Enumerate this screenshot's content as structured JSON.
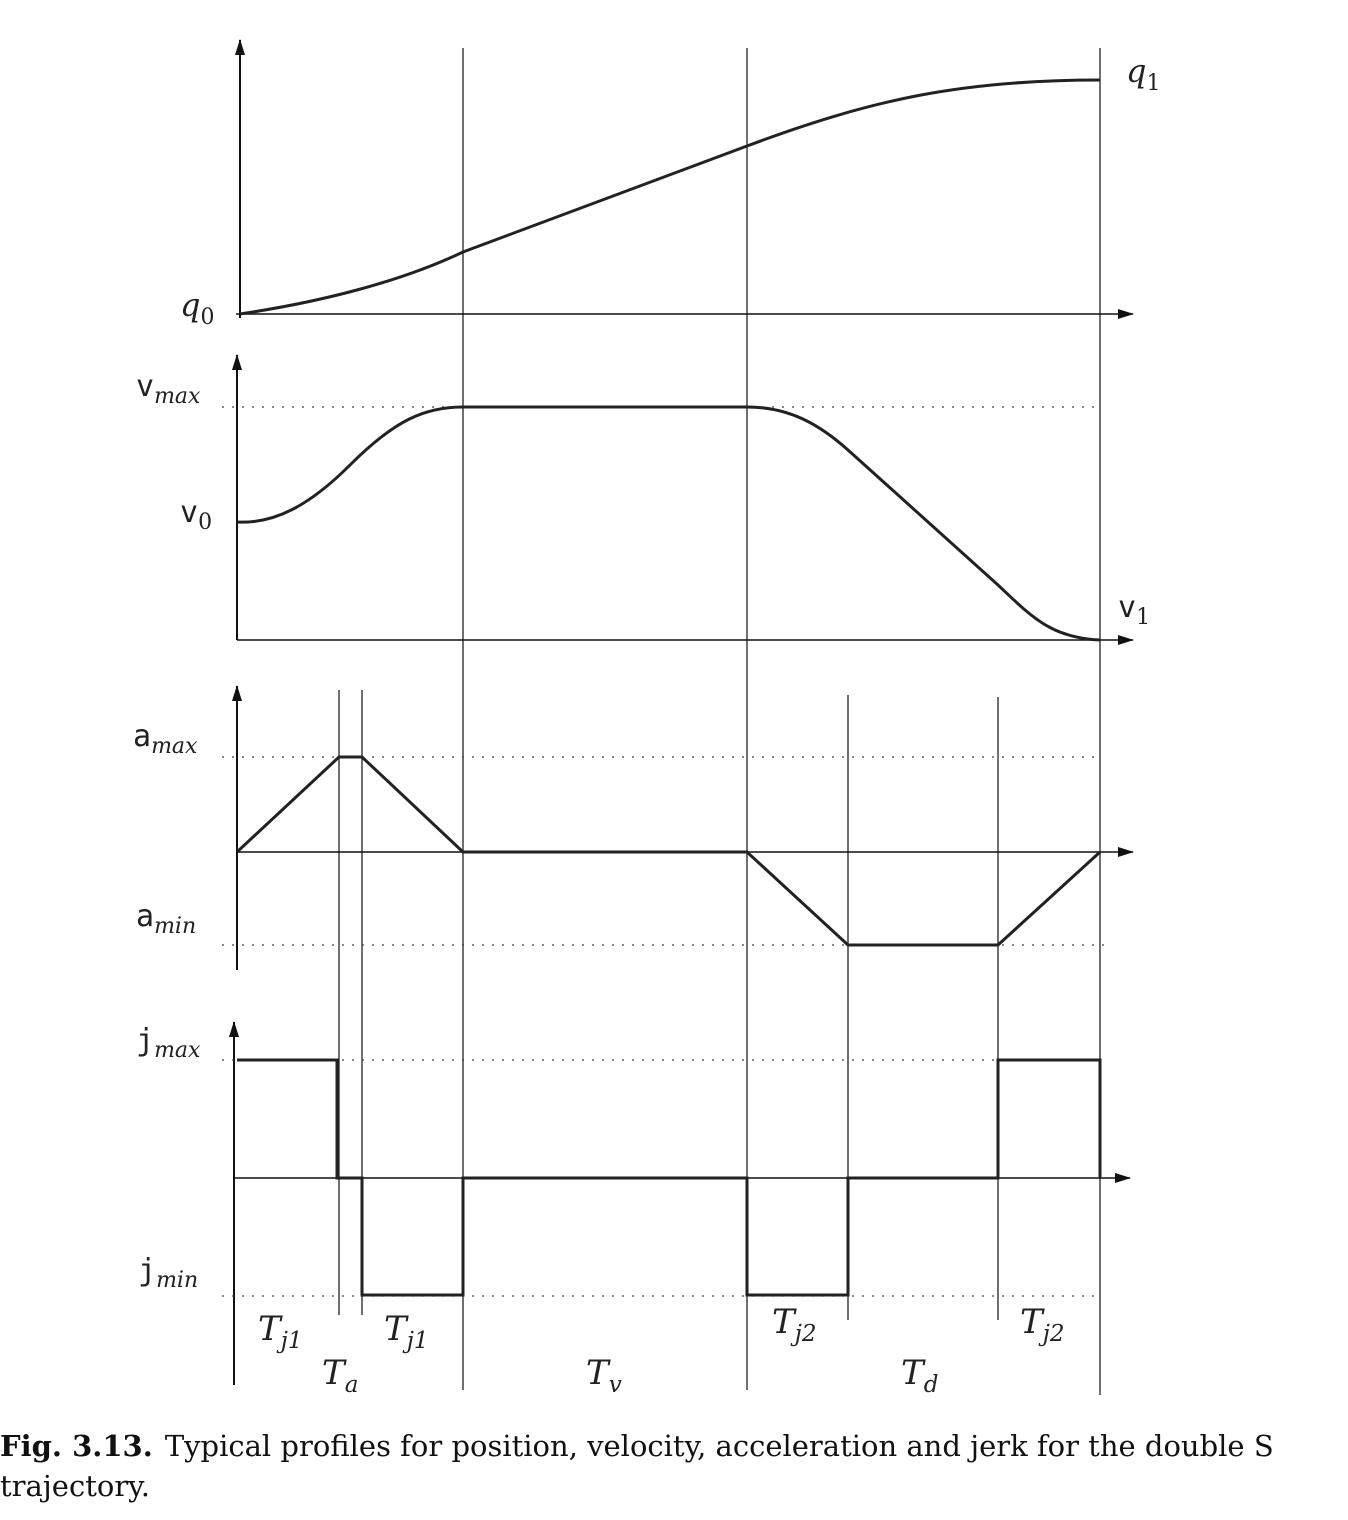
{
  "figure": {
    "position_labels": {
      "q0": "q",
      "q0_sub": "0",
      "q1": "q",
      "q1_sub": "1"
    },
    "velocity_labels": {
      "vmax": "v",
      "vmax_sub": "max",
      "v0": "v",
      "v0_sub": "0",
      "v1": "v",
      "v1_sub": "1"
    },
    "acceleration_labels": {
      "amax": "a",
      "amax_sub": "max",
      "amin": "a",
      "amin_sub": "min"
    },
    "jerk_labels": {
      "jmax": "j",
      "jmax_sub": "max",
      "jmin": "j",
      "jmin_sub": "min"
    },
    "interval_labels": {
      "tj1_a": "T",
      "tj1_a_sub": "j1",
      "tj1_b": "T",
      "tj1_b_sub": "j1",
      "tj2_a": "T",
      "tj2_a_sub": "j2",
      "tj2_b": "T",
      "tj2_b_sub": "j2",
      "ta": "T",
      "ta_sub": "a",
      "tv": "T",
      "tv_sub": "v",
      "td": "T",
      "td_sub": "d"
    }
  },
  "caption": {
    "label": "Fig. 3.13.",
    "text": "Typical profiles for position, velocity, acceleration and jerk for the double S trajectory."
  }
}
